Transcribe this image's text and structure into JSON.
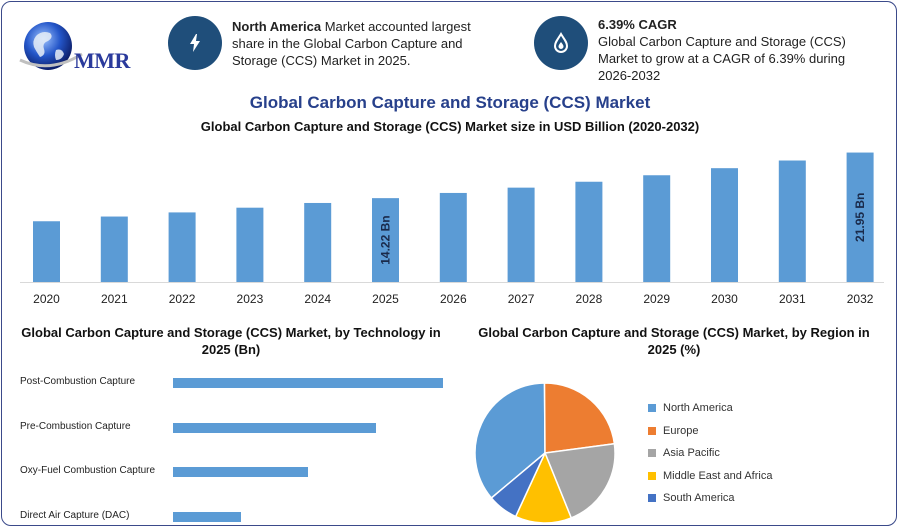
{
  "brand": {
    "name": "MMR"
  },
  "info_left": {
    "highlight": "North America",
    "text": " Market accounted largest share in the Global Carbon Capture and Storage (CCS) Market in 2025.",
    "icon": "lightning-bolt-icon"
  },
  "info_right": {
    "title": "6.39% CAGR",
    "text": "Global Carbon Capture and Storage (CCS) Market to grow at a CAGR of 6.39% during 2026-2032",
    "icon": "drop-flame-icon"
  },
  "main_title": "Global Carbon Capture and Storage (CCS) Market",
  "chart_data": [
    {
      "type": "bar",
      "title": "Global Carbon Capture and Storage (CCS) Market size in USD Billion (2020-2032)",
      "categories": [
        "2020",
        "2021",
        "2022",
        "2023",
        "2024",
        "2025",
        "2026",
        "2027",
        "2028",
        "2029",
        "2030",
        "2031",
        "2032"
      ],
      "values": [
        10.3,
        11.1,
        11.8,
        12.6,
        13.4,
        14.22,
        15.1,
        16.0,
        17.0,
        18.1,
        19.3,
        20.6,
        21.95
      ],
      "ylim": [
        0,
        23.4
      ],
      "data_labels": [
        {
          "index": 5,
          "text": "14.22 Bn"
        },
        {
          "index": 12,
          "text": "21.95 Bn"
        }
      ],
      "color": "#5b9bd5",
      "grid": false
    },
    {
      "type": "bar",
      "orientation": "horizontal",
      "title": "Global Carbon Capture and Storage (CCS) Market, by Technology in 2025 (Bn)",
      "categories": [
        "Post-Combustion Capture",
        "Pre-Combustion Capture",
        "Oxy-Fuel Combustion Capture",
        "Direct Air Capture (DAC)"
      ],
      "values": [
        6.4,
        4.8,
        3.2,
        1.6
      ],
      "xlim": [
        0,
        6.4
      ],
      "color": "#5b9bd5"
    },
    {
      "type": "pie",
      "title": "Global Carbon Capture and Storage (CCS) Market, by Region in 2025 (%)",
      "labels": [
        "North America",
        "Europe",
        "Asia Pacific",
        "Middle East and Africa",
        "South America"
      ],
      "values": [
        36,
        23,
        21,
        13,
        7
      ],
      "colors": [
        "#5b9bd5",
        "#ed7d31",
        "#a5a5a5",
        "#ffc000",
        "#4472c4"
      ],
      "legend_position": "right"
    }
  ]
}
